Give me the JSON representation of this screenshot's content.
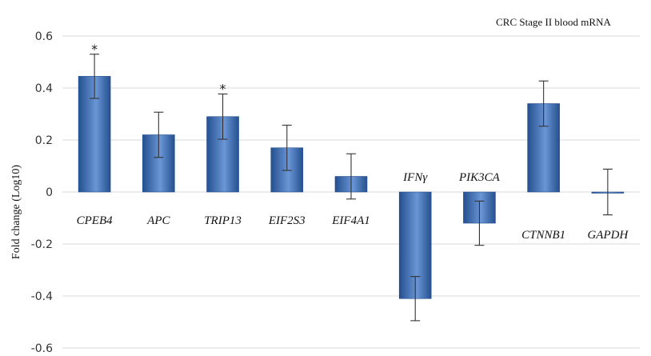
{
  "chart_data": {
    "type": "bar",
    "title": "CRC Stage II blood mRNA",
    "xlabel": "",
    "ylabel": "Fold change (Log10)",
    "ylim": [
      -0.6,
      0.6
    ],
    "yticks": [
      0.6,
      0.4,
      0.2,
      0,
      -0.2,
      -0.4,
      -0.6
    ],
    "ytick_labels": [
      "0.6",
      "0.4",
      "0.2",
      "0",
      "-0.2",
      "-0.4",
      "-0.6"
    ],
    "grid": true,
    "categories": [
      "CPEB4",
      "APC",
      "TRIP13",
      "EIF2S3",
      "EIF4A1",
      "IFNγ",
      "PIK3CA",
      "CTNNB1",
      "GAPDH"
    ],
    "values": [
      0.445,
      0.22,
      0.29,
      0.17,
      0.06,
      -0.41,
      -0.12,
      0.34,
      0.0
    ],
    "error": [
      0.085,
      0.087,
      0.087,
      0.087,
      0.087,
      0.085,
      0.085,
      0.087,
      0.088
    ],
    "significance": [
      "*",
      "",
      "*",
      "",
      "",
      "",
      "",
      "",
      ""
    ],
    "bar_color": "#3F6FBF",
    "bar_color_dark": "#25508F",
    "bar_color_light": "#6A95D6"
  }
}
